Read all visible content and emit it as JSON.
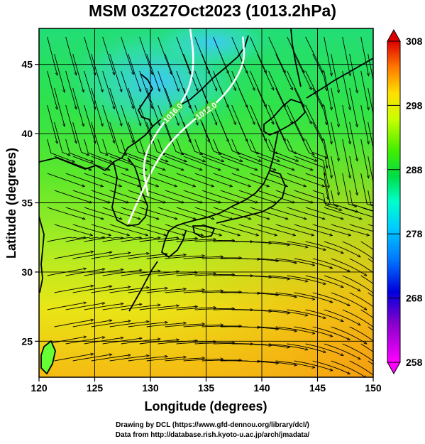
{
  "title": "MSM 03Z27Oct2023 (1013.2hPa)",
  "credits": {
    "line1": "Drawing by DCL (https://www.gfd-dennou.org/library/dcl/)",
    "line2": "Data from http://database.rish.kyoto-u.ac.jp/arch/jmadata/"
  },
  "chart_data": {
    "type": "map",
    "xlabel": "Longitude (degrees)",
    "ylabel": "Latitude  (degrees)",
    "xlim": [
      120,
      150
    ],
    "ylim": [
      22.4,
      47.6
    ],
    "xticks": [
      120,
      125,
      130,
      135,
      140,
      145,
      150
    ],
    "yticks": [
      25,
      30,
      35,
      40,
      45
    ],
    "gridlines": true,
    "colorbar": {
      "min": 258,
      "max": 308,
      "ticks": [
        258,
        268,
        278,
        288,
        298,
        308
      ],
      "colors": [
        "#ff00ff",
        "#0000cc",
        "#0066ff",
        "#00ccff",
        "#00ffcc",
        "#00cc33",
        "#66ff00",
        "#ffff00",
        "#ffaa00",
        "#ff4400",
        "#cc0000"
      ]
    },
    "contours": [
      {
        "label": "1016.0",
        "points": [
          [
            133.5,
            48
          ],
          [
            134.0,
            45.0
          ],
          [
            133.2,
            42.5
          ],
          [
            130.8,
            40.5
          ],
          [
            129.2,
            38.0
          ],
          [
            129.8,
            35.5
          ]
        ]
      },
      {
        "label": "1012.0",
        "points": [
          [
            138.3,
            47
          ],
          [
            138.5,
            45.0
          ],
          [
            136.5,
            42.5
          ],
          [
            133.5,
            40.8
          ],
          [
            130.8,
            38.5
          ],
          [
            128.8,
            35.0
          ],
          [
            128.0,
            33.5
          ]
        ]
      }
    ]
  }
}
